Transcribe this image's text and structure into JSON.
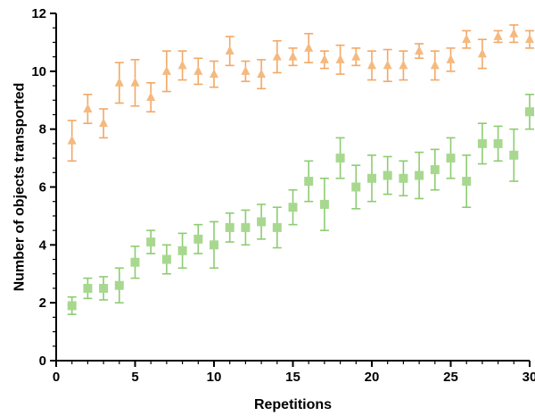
{
  "chart_data": {
    "type": "scatter",
    "title": "",
    "xlabel": "Repetitions",
    "ylabel": "Number of objects transported",
    "xlim": [
      0,
      30
    ],
    "ylim": [
      0,
      12
    ],
    "xticks": [
      0,
      5,
      10,
      15,
      20,
      25,
      30
    ],
    "yticks": [
      0,
      2,
      4,
      6,
      8,
      10,
      12
    ],
    "grid": false,
    "legend": "none",
    "series": [
      {
        "marker": "triangle",
        "color": "#f5b97f",
        "x": [
          1,
          2,
          3,
          4,
          5,
          6,
          7,
          8,
          9,
          10,
          11,
          12,
          13,
          14,
          15,
          16,
          17,
          18,
          19,
          20,
          21,
          22,
          23,
          24,
          25,
          26,
          27,
          28,
          29,
          30
        ],
        "y": [
          7.6,
          8.7,
          8.2,
          9.6,
          9.6,
          9.1,
          10.0,
          10.2,
          10.0,
          9.9,
          10.7,
          10.0,
          9.9,
          10.5,
          10.5,
          10.8,
          10.4,
          10.4,
          10.5,
          10.2,
          10.2,
          10.2,
          10.7,
          10.2,
          10.4,
          11.1,
          10.6,
          11.2,
          11.3,
          11.1
        ],
        "error": [
          0.7,
          0.5,
          0.5,
          0.7,
          0.8,
          0.5,
          0.7,
          0.5,
          0.45,
          0.45,
          0.5,
          0.35,
          0.5,
          0.55,
          0.3,
          0.5,
          0.3,
          0.5,
          0.3,
          0.5,
          0.55,
          0.5,
          0.25,
          0.5,
          0.4,
          0.3,
          0.5,
          0.2,
          0.3,
          0.3
        ]
      },
      {
        "marker": "square",
        "color": "#a8d88f",
        "x": [
          1,
          2,
          3,
          4,
          5,
          6,
          7,
          8,
          9,
          10,
          11,
          12,
          13,
          14,
          15,
          16,
          17,
          18,
          19,
          20,
          21,
          22,
          23,
          24,
          25,
          26,
          27,
          28,
          29,
          30
        ],
        "y": [
          1.9,
          2.5,
          2.5,
          2.6,
          3.4,
          4.1,
          3.5,
          3.8,
          4.2,
          4.0,
          4.6,
          4.6,
          4.8,
          4.6,
          5.3,
          6.2,
          5.4,
          7.0,
          6.0,
          6.3,
          6.4,
          6.3,
          6.4,
          6.6,
          7.0,
          6.2,
          7.5,
          7.5,
          7.1,
          8.6
        ],
        "error": [
          0.3,
          0.35,
          0.4,
          0.6,
          0.55,
          0.4,
          0.5,
          0.6,
          0.5,
          0.8,
          0.5,
          0.6,
          0.6,
          0.7,
          0.6,
          0.7,
          0.9,
          0.7,
          0.75,
          0.8,
          0.65,
          0.6,
          0.8,
          0.7,
          0.7,
          0.9,
          0.7,
          0.6,
          0.9,
          0.6
        ]
      }
    ]
  }
}
